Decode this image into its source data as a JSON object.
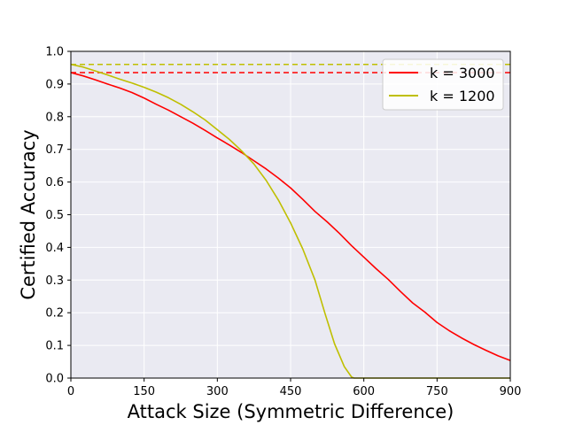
{
  "chart_data": {
    "type": "line",
    "title": "",
    "xlabel": "Attack Size (Symmetric Difference)",
    "ylabel": "Certified Accuracy",
    "xlim": [
      0,
      900
    ],
    "ylim": [
      0,
      1.0
    ],
    "xticks": [
      0,
      150,
      300,
      450,
      600,
      750,
      900
    ],
    "yticks": [
      0.0,
      0.1,
      0.2,
      0.3,
      0.4,
      0.5,
      0.6,
      0.7,
      0.8,
      0.9,
      1.0
    ],
    "xtick_labels": [
      "0",
      "150",
      "300",
      "450",
      "600",
      "750",
      "900"
    ],
    "ytick_labels": [
      "0.0",
      "0.1",
      "0.2",
      "0.3",
      "0.4",
      "0.5",
      "0.6",
      "0.7",
      "0.8",
      "0.9",
      "1.0"
    ],
    "grid": true,
    "background": "#eaeaf2",
    "legend_position": "top-right",
    "series": [
      {
        "name": "k = 3000",
        "color": "#ff0000",
        "x": [
          0,
          25,
          50,
          75,
          100,
          125,
          150,
          175,
          200,
          225,
          250,
          275,
          300,
          325,
          350,
          375,
          400,
          425,
          450,
          475,
          500,
          525,
          550,
          575,
          600,
          625,
          650,
          675,
          700,
          725,
          750,
          775,
          800,
          825,
          850,
          875,
          900
        ],
        "values": [
          0.935,
          0.925,
          0.913,
          0.9,
          0.888,
          0.874,
          0.857,
          0.838,
          0.82,
          0.8,
          0.78,
          0.758,
          0.735,
          0.713,
          0.69,
          0.665,
          0.64,
          0.612,
          0.582,
          0.547,
          0.51,
          0.478,
          0.443,
          0.405,
          0.37,
          0.335,
          0.302,
          0.265,
          0.23,
          0.202,
          0.17,
          0.145,
          0.123,
          0.103,
          0.085,
          0.068,
          0.054
        ]
      },
      {
        "name": "k = 1200",
        "color": "#bfbf00",
        "x": [
          0,
          25,
          50,
          75,
          100,
          125,
          150,
          175,
          200,
          225,
          250,
          275,
          300,
          325,
          350,
          375,
          400,
          425,
          450,
          475,
          500,
          520,
          540,
          560,
          575,
          580,
          600,
          650,
          700,
          750,
          800,
          850,
          900
        ],
        "values": [
          0.96,
          0.952,
          0.94,
          0.928,
          0.915,
          0.903,
          0.89,
          0.875,
          0.858,
          0.838,
          0.815,
          0.79,
          0.76,
          0.73,
          0.695,
          0.655,
          0.605,
          0.545,
          0.475,
          0.395,
          0.3,
          0.2,
          0.105,
          0.035,
          0.003,
          0.0,
          0.0,
          0.0,
          0.0,
          0.0,
          0.0,
          0.0,
          0.0
        ]
      }
    ],
    "reference_lines": [
      {
        "y": 0.935,
        "color": "#ff0000",
        "style": "dashed"
      },
      {
        "y": 0.96,
        "color": "#bfbf00",
        "style": "dashed"
      }
    ]
  }
}
